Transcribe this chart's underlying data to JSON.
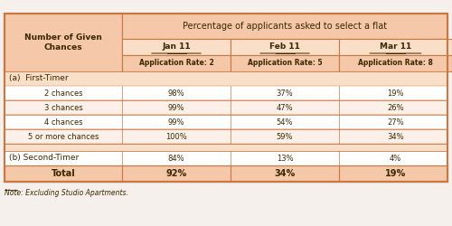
{
  "title": "Percentage of applicants asked to select a flat",
  "col_header1": "Number of Given\nChances",
  "months": [
    "Jan 11",
    "Feb 11",
    "Mar 11"
  ],
  "app_rates": [
    "Application Rate: 2",
    "Application Rate: 5",
    "Application Rate: 8"
  ],
  "section_a": "(a)  First-Timer",
  "rows_a": [
    [
      "2 chances",
      "98%",
      "37%",
      "19%"
    ],
    [
      "3 chances",
      "99%",
      "47%",
      "26%"
    ],
    [
      "4 chances",
      "99%",
      "54%",
      "27%"
    ],
    [
      "5 or more chances",
      "100%",
      "59%",
      "34%"
    ]
  ],
  "section_b_label": "(b) Second-Timer",
  "section_b_vals": [
    "84%",
    "13%",
    "4%"
  ],
  "total_label": "Total",
  "total_vals": [
    "92%",
    "34%",
    "19%"
  ],
  "note": "Note: Excluding Studio Apartments.",
  "header_bg": "#f4c8a8",
  "header_bg_light": "#f9dfc8",
  "row_bg_white": "#ffffff",
  "row_bg_light": "#fdf0e8",
  "border_color": "#c87840",
  "text_color": "#3c2800",
  "total_bg": "#f4c8a8"
}
